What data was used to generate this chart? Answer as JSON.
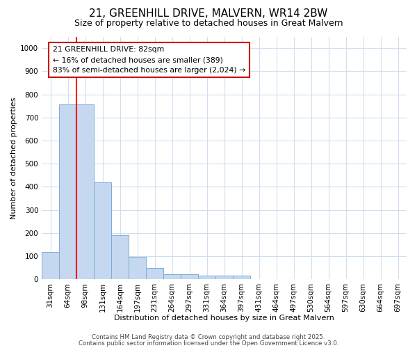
{
  "title_line1": "21, GREENHILL DRIVE, MALVERN, WR14 2BW",
  "title_line2": "Size of property relative to detached houses in Great Malvern",
  "xlabel": "Distribution of detached houses by size in Great Malvern",
  "ylabel": "Number of detached properties",
  "bar_color": "#c5d8f0",
  "bar_edge_color": "#7badd6",
  "categories": [
    "31sqm",
    "64sqm",
    "98sqm",
    "131sqm",
    "164sqm",
    "197sqm",
    "231sqm",
    "264sqm",
    "297sqm",
    "331sqm",
    "364sqm",
    "397sqm",
    "431sqm",
    "464sqm",
    "497sqm",
    "530sqm",
    "564sqm",
    "597sqm",
    "630sqm",
    "664sqm",
    "697sqm"
  ],
  "values": [
    117,
    757,
    757,
    420,
    190,
    97,
    48,
    22,
    22,
    15,
    15,
    15,
    0,
    0,
    0,
    0,
    0,
    0,
    0,
    0,
    0
  ],
  "ylim": [
    0,
    1050
  ],
  "yticks": [
    0,
    100,
    200,
    300,
    400,
    500,
    600,
    700,
    800,
    900,
    1000
  ],
  "redline_x": 1.5,
  "annotation_text": "21 GREENHILL DRIVE: 82sqm\n← 16% of detached houses are smaller (389)\n83% of semi-detached houses are larger (2,024) →",
  "annotation_box_color": "#ffffff",
  "annotation_edge_color": "#cc0000",
  "footer_line1": "Contains HM Land Registry data © Crown copyright and database right 2025.",
  "footer_line2": "Contains public sector information licensed under the Open Government Licence v3.0.",
  "background_color": "#ffffff",
  "grid_color": "#d0dff0",
  "title_fontsize": 11,
  "subtitle_fontsize": 9,
  "axis_label_fontsize": 8,
  "tick_fontsize": 7.5
}
